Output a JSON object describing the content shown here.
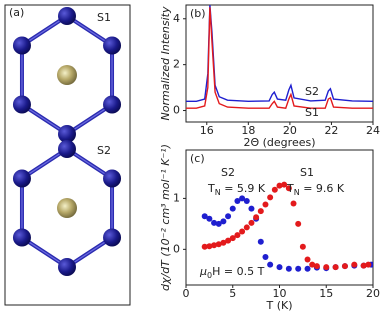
{
  "panel_a": {
    "label": "(a)",
    "structures": [
      {
        "name": "S1",
        "color": "#e31a1c"
      },
      {
        "name": "S2",
        "color": "#1f1fcf"
      }
    ]
  },
  "chart_data": [
    {
      "type": "line",
      "label": "(b)",
      "xlabel": "2Θ (degrees)",
      "ylabel": "Normalized Intensity",
      "x": [
        15.0,
        15.5,
        15.9,
        16.05,
        16.15,
        16.25,
        16.4,
        16.6,
        17.0,
        18.0,
        19.0,
        19.15,
        19.25,
        19.4,
        19.8,
        19.95,
        20.05,
        20.2,
        21.0,
        21.7,
        21.85,
        21.95,
        22.1,
        23.0,
        24.0
      ],
      "series": [
        {
          "name": "S2",
          "color": "#1f1fcf",
          "values": [
            0.4,
            0.4,
            0.5,
            1.6,
            4.6,
            3.4,
            1.1,
            0.6,
            0.45,
            0.4,
            0.42,
            0.7,
            0.8,
            0.5,
            0.45,
            0.9,
            1.1,
            0.55,
            0.42,
            0.45,
            0.85,
            0.95,
            0.5,
            0.42,
            0.4
          ]
        },
        {
          "name": "S1",
          "color": "#e31a1c",
          "values": [
            0.1,
            0.1,
            0.2,
            1.0,
            4.5,
            3.0,
            0.8,
            0.3,
            0.15,
            0.1,
            0.1,
            0.3,
            0.4,
            0.15,
            0.1,
            0.5,
            0.7,
            0.2,
            0.1,
            0.1,
            0.5,
            0.55,
            0.15,
            0.1,
            0.1
          ]
        }
      ],
      "xlim": [
        15,
        24
      ],
      "xticks": [
        16,
        18,
        20,
        22,
        24
      ],
      "ylim": [
        -0.5,
        4.6
      ],
      "yticks": [
        0,
        2,
        4
      ]
    },
    {
      "type": "scatter",
      "label": "(c)",
      "xlabel": "T (K)",
      "ylabel": "dχ/dT (10⁻² cm³ mol⁻¹ K⁻¹)",
      "series": [
        {
          "name": "S2",
          "color": "#1f1fcf",
          "tn": {
            "symbol": "T",
            "subscript": "N",
            "text": " = 5.9 K"
          },
          "x": [
            2,
            2.5,
            3,
            3.5,
            4,
            4.5,
            5,
            5.5,
            6,
            6.5,
            7,
            7.5,
            8,
            8.5,
            9,
            10,
            11,
            12,
            13,
            14,
            15,
            16,
            17,
            18,
            19,
            19.8
          ],
          "values": [
            0.65,
            0.6,
            0.52,
            0.5,
            0.55,
            0.65,
            0.8,
            0.95,
            1.0,
            0.95,
            0.8,
            0.6,
            0.15,
            -0.15,
            -0.3,
            -0.35,
            -0.38,
            -0.38,
            -0.38,
            -0.36,
            -0.37,
            -0.35,
            -0.33,
            -0.32,
            -0.32,
            -0.3
          ]
        },
        {
          "name": "S1",
          "color": "#e31a1c",
          "tn": {
            "symbol": "T",
            "subscript": "N",
            "text": " = 9.6 K"
          },
          "x": [
            2,
            2.5,
            3,
            3.5,
            4,
            4.5,
            5,
            5.5,
            6,
            6.5,
            7,
            7.5,
            8,
            8.5,
            9,
            9.5,
            10,
            10.5,
            11,
            11.5,
            12,
            12.5,
            13,
            13.5,
            14,
            15,
            16,
            17,
            18,
            19,
            19.5
          ],
          "values": [
            0.05,
            0.06,
            0.08,
            0.1,
            0.13,
            0.17,
            0.22,
            0.28,
            0.35,
            0.43,
            0.52,
            0.63,
            0.75,
            0.88,
            1.02,
            1.17,
            1.25,
            1.27,
            1.2,
            0.9,
            0.5,
            0.05,
            -0.2,
            -0.3,
            -0.33,
            -0.35,
            -0.35,
            -0.33,
            -0.3,
            -0.32,
            -0.3
          ]
        }
      ],
      "field": {
        "symbol": "μ",
        "subscript": "0",
        "text": "H = 0.5 T"
      },
      "xlim": [
        0,
        20
      ],
      "xticks": [
        0,
        5,
        10,
        15,
        20
      ],
      "ylim": [
        -0.7,
        1.95
      ],
      "yticks": [
        0,
        1
      ]
    }
  ]
}
